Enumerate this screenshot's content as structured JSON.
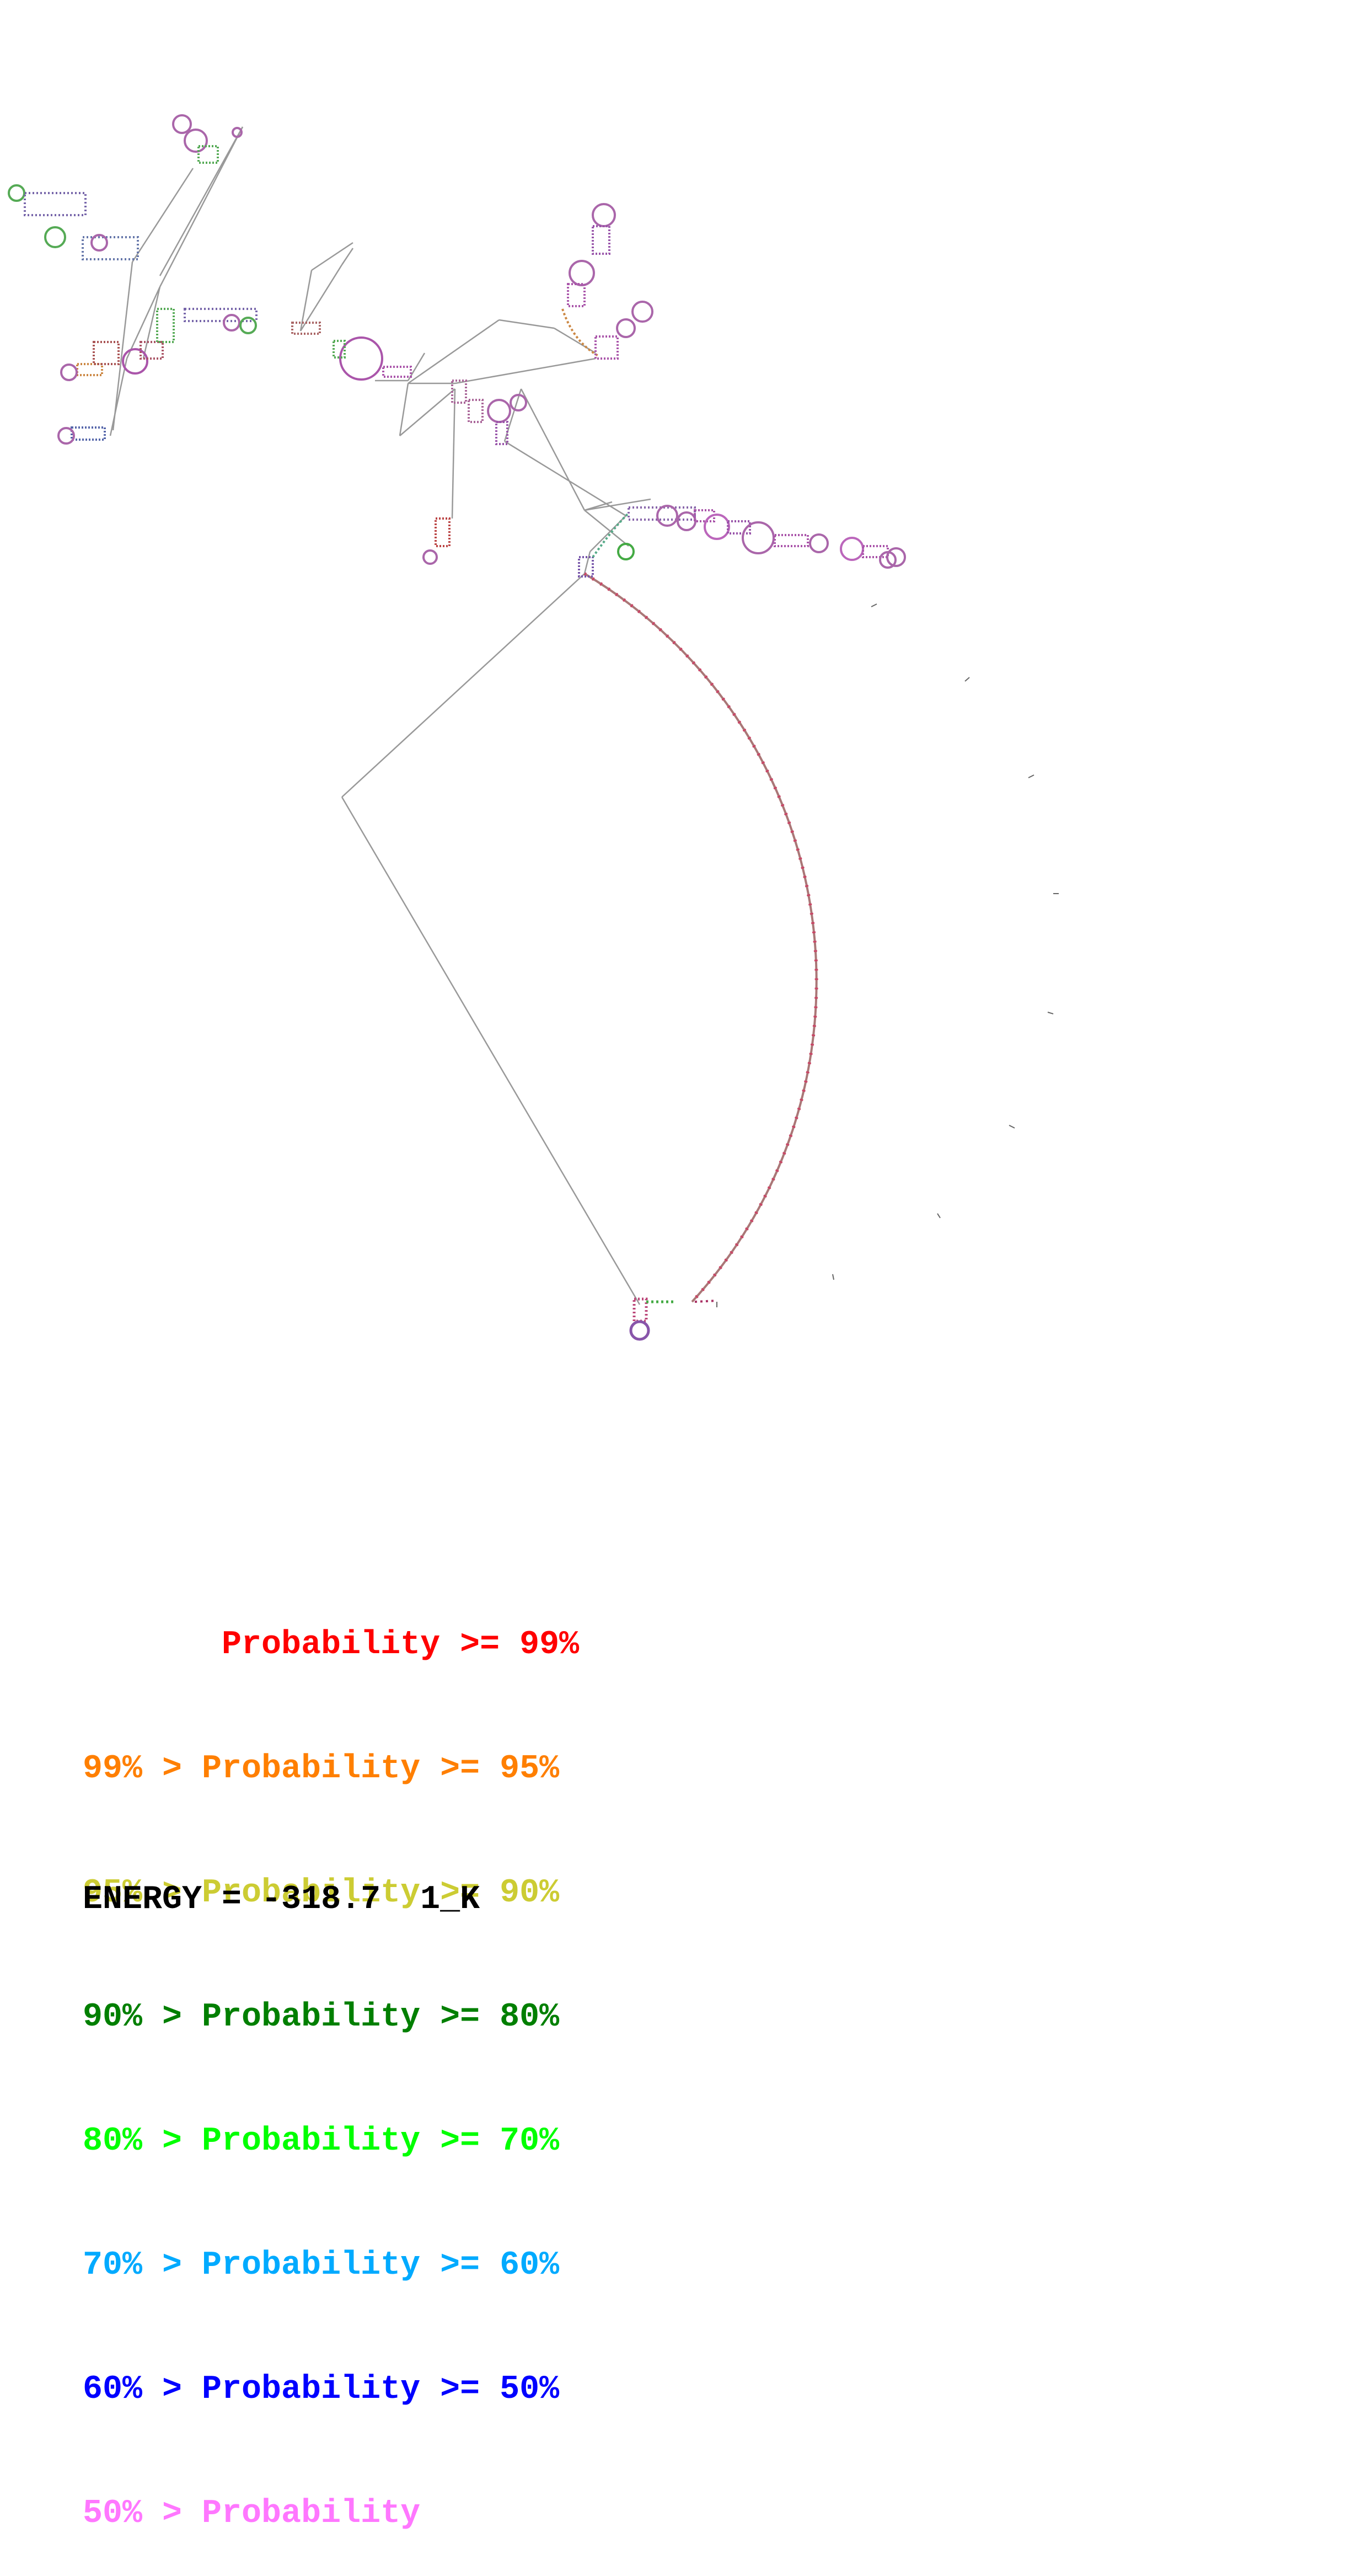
{
  "colors": {
    "p99": "#ff0000",
    "p95": "#ff7f00",
    "p90": "#cccc33",
    "p80": "#007f00",
    "p70": "#00ff00",
    "p60": "#00aaff",
    "p50": "#0000ff",
    "plow": "#ff77ff",
    "backbone": "#888888"
  },
  "legend": [
    {
      "text": "       Probability >= 99%",
      "color_key": "p99"
    },
    {
      "text": "99% > Probability >= 95%",
      "color_key": "p95"
    },
    {
      "text": "95% > Probability >= 90%",
      "color_key": "p90"
    },
    {
      "text": "90% > Probability >= 80%",
      "color_key": "p80"
    },
    {
      "text": "80% > Probability >= 70%",
      "color_key": "p70"
    },
    {
      "text": "70% > Probability >= 60%",
      "color_key": "p60"
    },
    {
      "text": "60% > Probability >= 50%",
      "color_key": "p50"
    },
    {
      "text": "50% > Probability",
      "color_key": "plow"
    }
  ],
  "energy_label": "ENERGY = -318.7  1_K"
}
